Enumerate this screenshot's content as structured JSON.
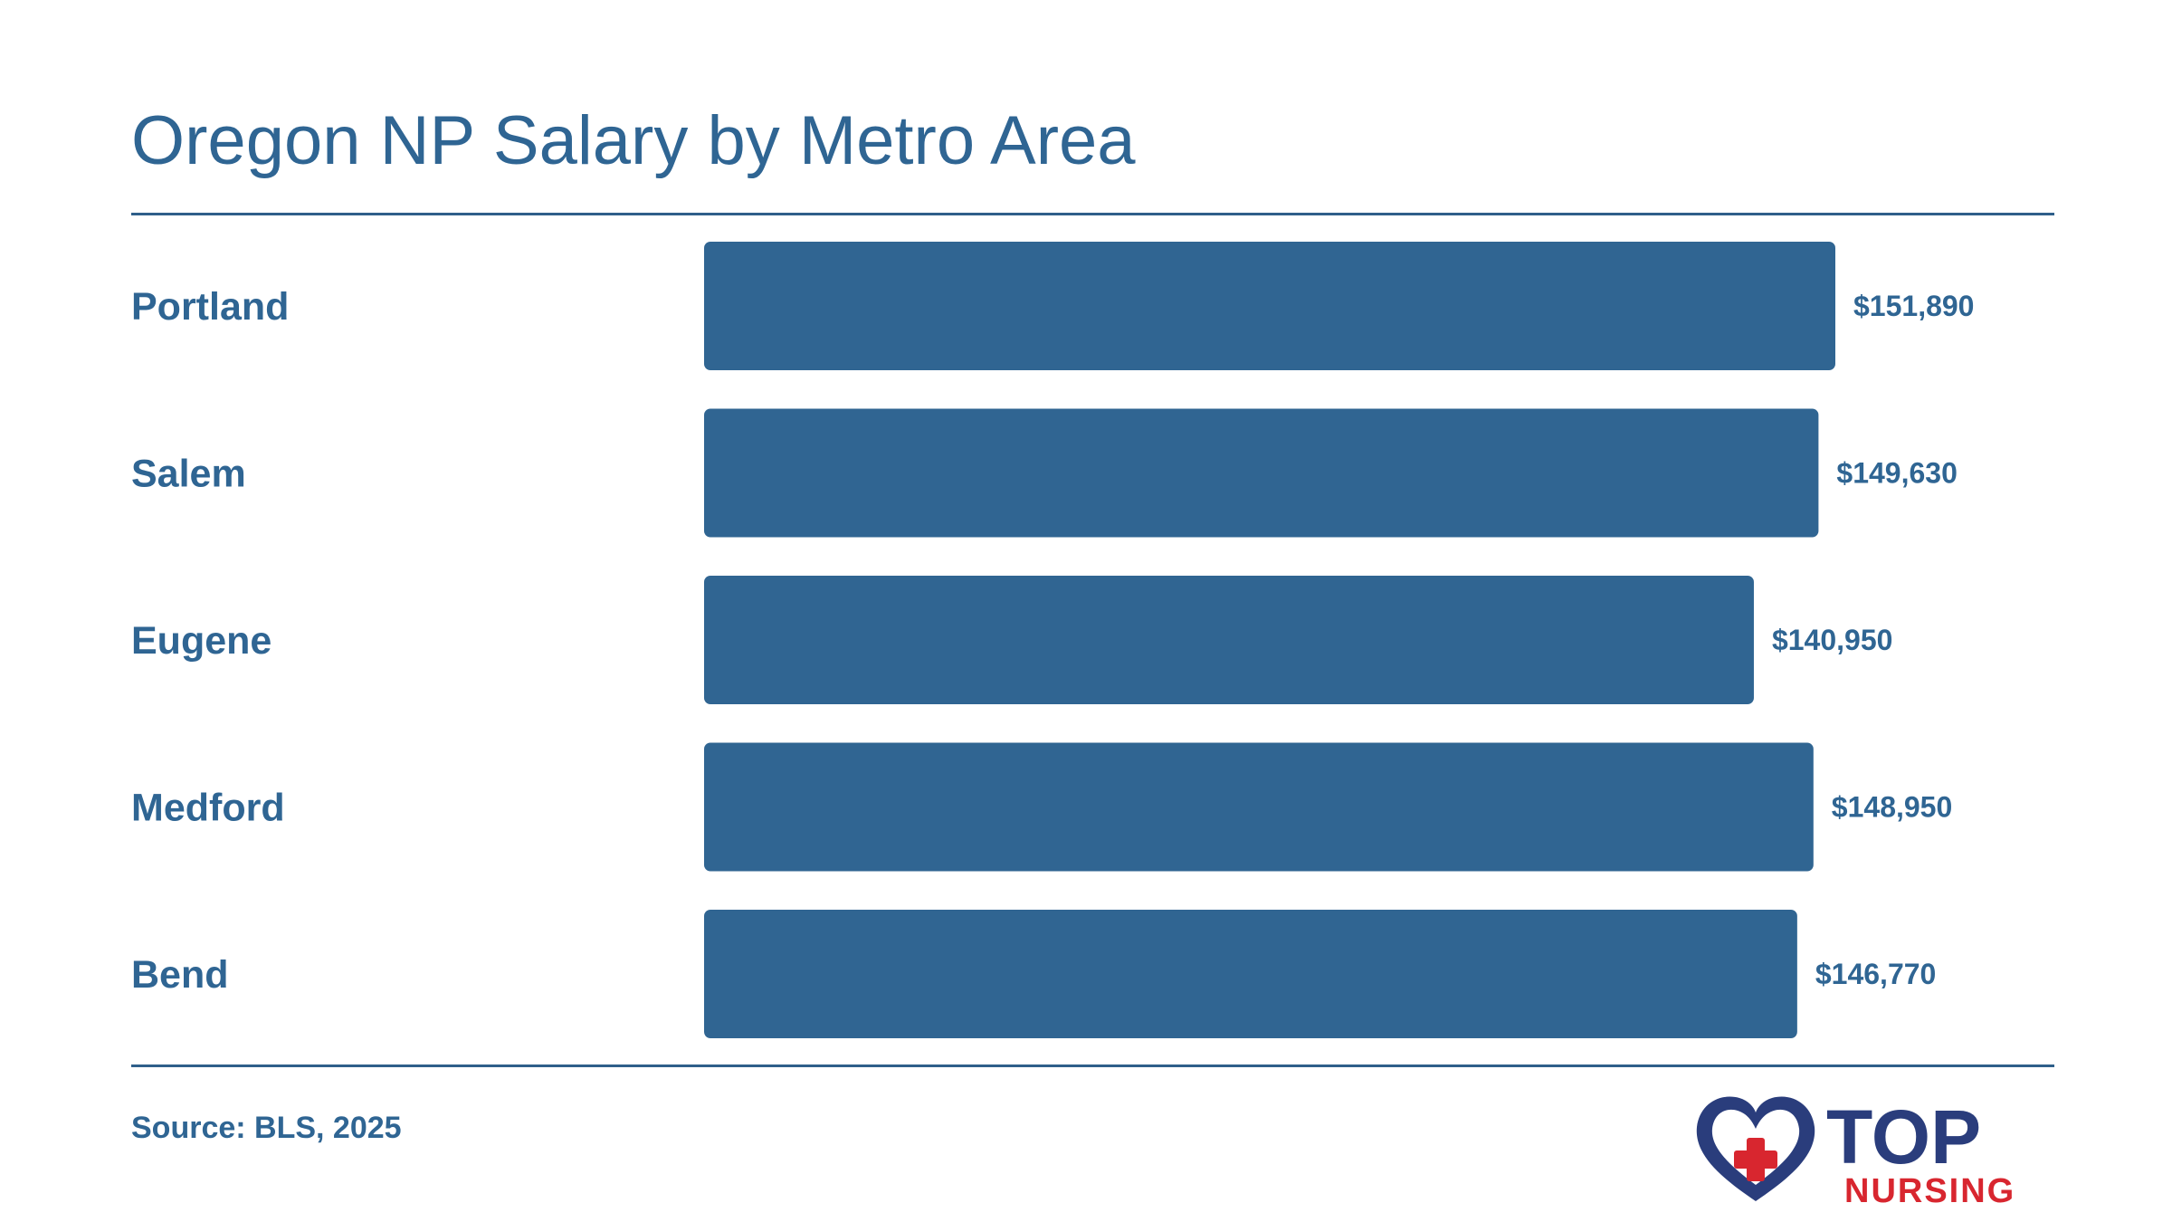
{
  "title": "Oregon NP Salary by Metro Area",
  "source": "Source: BLS, 2025",
  "logo": {
    "text_top": "TOP",
    "text_bottom": "NURSING",
    "colors": {
      "heart": "#2a3d7c",
      "cross": "#d8262f",
      "nursing": "#d8262f"
    }
  },
  "colors": {
    "bar": "#306592",
    "text": "#2f6593",
    "rule": "#2f5f8a"
  },
  "chart_data": {
    "type": "bar",
    "orientation": "horizontal",
    "title": "Oregon NP Salary by Metro Area",
    "categories": [
      "Portland",
      "Salem",
      "Eugene",
      "Medford",
      "Bend"
    ],
    "values": [
      151890,
      149630,
      140950,
      148950,
      146770
    ],
    "value_labels": [
      "$151,890",
      "$149,630",
      "$140,950",
      "$148,950",
      "$146,770"
    ],
    "xlabel": "",
    "ylabel": "",
    "xlim": [
      0,
      151890
    ],
    "grid": false,
    "legend": "none"
  }
}
